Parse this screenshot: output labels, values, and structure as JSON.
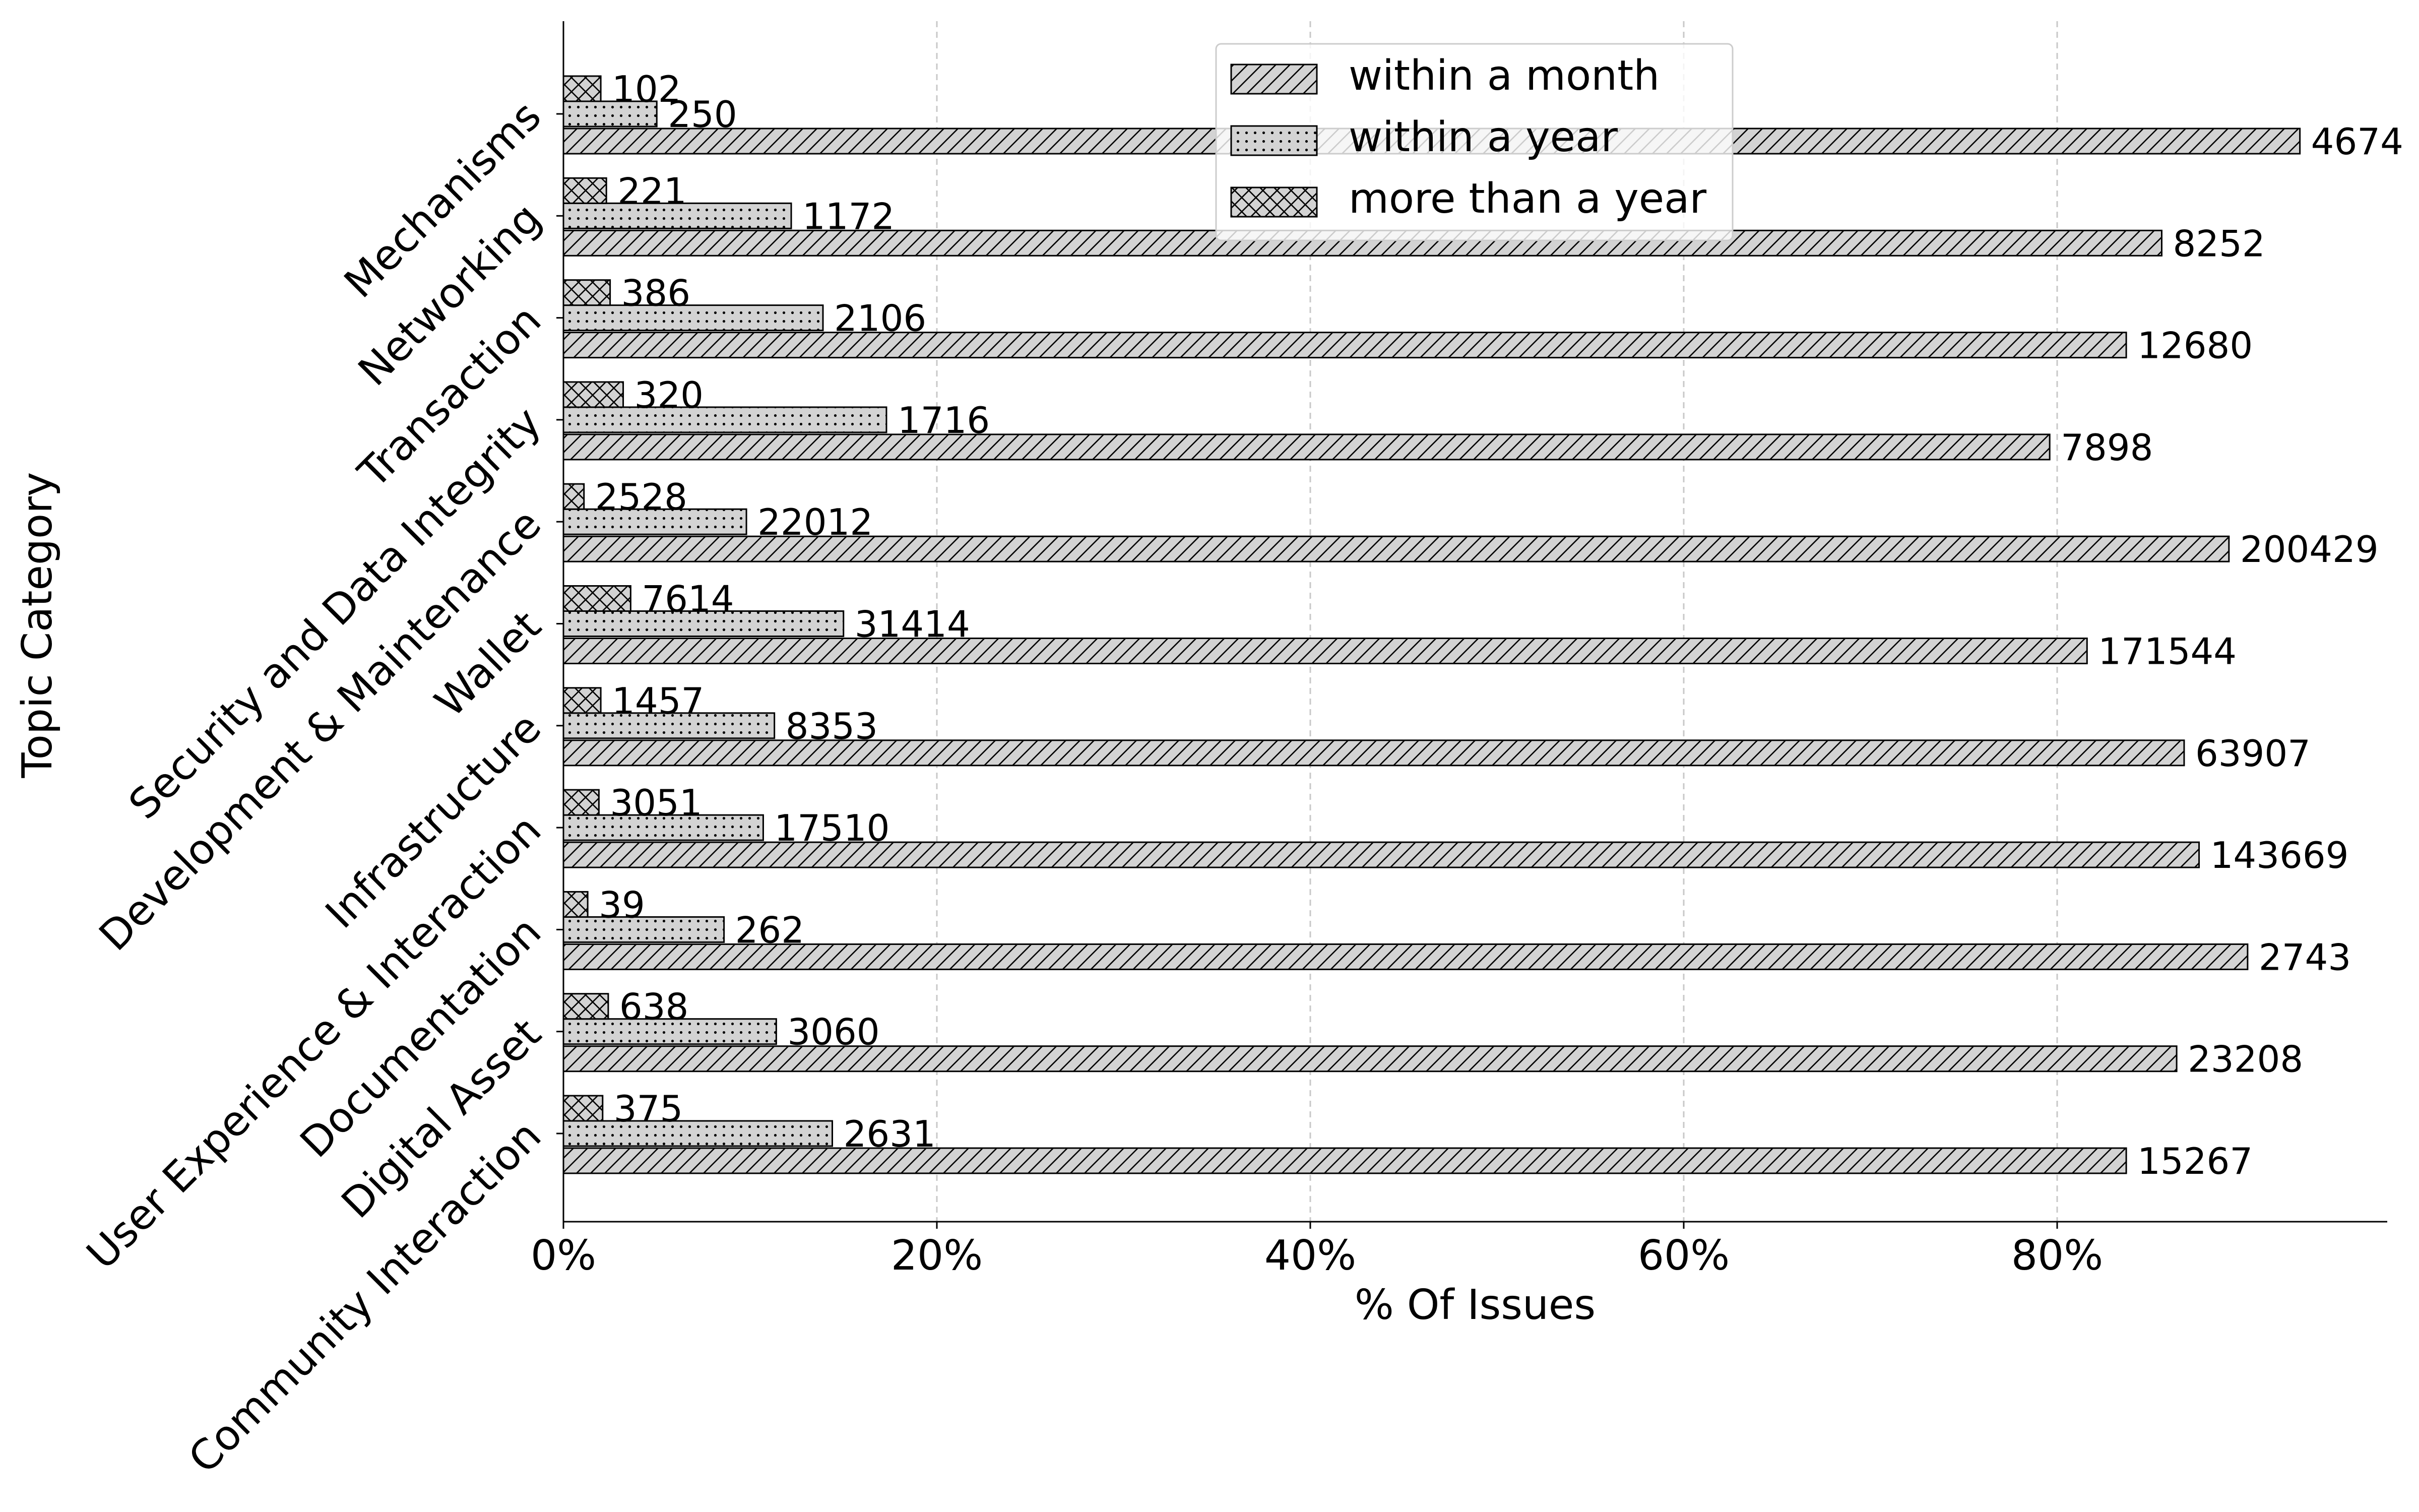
{
  "chart_data": {
    "type": "bar",
    "orientation": "horizontal",
    "xlabel": "% Of Issues",
    "ylabel": "Topic Category",
    "xlim": [
      0,
      97.8
    ],
    "xticks": [
      0,
      20,
      40,
      60,
      80
    ],
    "xtick_labels": [
      "0%",
      "20%",
      "40%",
      "60%",
      "80%"
    ],
    "grid": "x-dashed",
    "legend_position": "top-center",
    "colors": {
      "bar_fill": "#d3d3d3",
      "edge": "#000000",
      "grid": "#c8c8c8"
    },
    "categories": [
      "Mechanisms",
      "Networking",
      "Transaction",
      "Security and Data Integrity",
      "Development & Maintenance",
      "Wallet",
      "Infrastructure",
      "User Experience & Interaction",
      "Documentation",
      "Digital Asset",
      "Community Interaction"
    ],
    "series": [
      {
        "name": "within a month",
        "hatch": "diagonal",
        "percent": [
          93.0,
          85.6,
          83.7,
          79.6,
          89.2,
          81.6,
          86.8,
          87.6,
          90.2,
          86.4,
          83.7
        ],
        "labels": [
          "4674",
          "8252",
          "12680",
          "7898",
          "200429",
          "171544",
          "63907",
          "143669",
          "2743",
          "23208",
          "15267"
        ]
      },
      {
        "name": "within a year",
        "hatch": "dots",
        "percent": [
          5.0,
          12.2,
          13.9,
          17.3,
          9.8,
          15.0,
          11.3,
          10.7,
          8.6,
          11.4,
          14.4
        ],
        "labels": [
          "250",
          "1172",
          "2106",
          "1716",
          "22012",
          "31414",
          "8353",
          "17510",
          "262",
          "3060",
          "2631"
        ]
      },
      {
        "name": "more than a year",
        "hatch": "crosshatch",
        "percent": [
          2.0,
          2.3,
          2.5,
          3.2,
          1.1,
          3.6,
          2.0,
          1.9,
          1.3,
          2.4,
          2.1
        ],
        "labels": [
          "102",
          "221",
          "386",
          "320",
          "2528",
          "7614",
          "1457",
          "3051",
          "39",
          "638",
          "375"
        ]
      }
    ]
  }
}
